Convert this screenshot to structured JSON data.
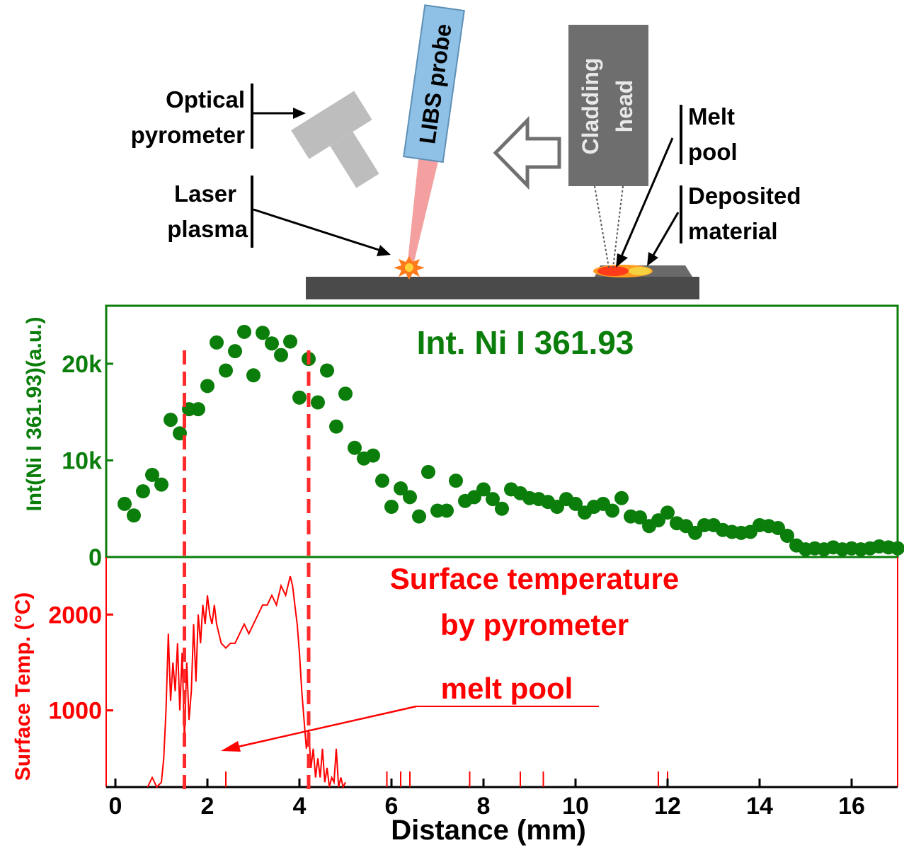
{
  "colors": {
    "ni_series": "#0a7d0a",
    "temp_series": "#ff0000",
    "dashed_lines": "#ff2a2a",
    "probe_fill": "#8fc0e6",
    "head_fill": "#6e6e6e",
    "pyrometer_fill": "#bdbdbd",
    "substrate_fill": "#4a4a4a",
    "axis_text": "#000000"
  },
  "schematic": {
    "optical_pyrometer_label": [
      "Optical",
      "pyrometer"
    ],
    "laser_plasma_label": [
      "Laser",
      "plasma"
    ],
    "libs_probe_label": "LIBS probe",
    "cladding_head_label": [
      "Cladding",
      "head"
    ],
    "melt_pool_label": [
      "Melt",
      "pool"
    ],
    "deposited_material_label": [
      "Deposited",
      "material"
    ],
    "icons": [
      "pyrometer-icon",
      "libs-probe-icon",
      "cladding-head-icon",
      "travel-direction-arrow-icon",
      "laser-plasma-spark-icon",
      "substrate-icon"
    ]
  },
  "chart_data": [
    {
      "type": "scatter",
      "title": "Int. Ni I 361.93",
      "ylabel": "Int(Ni I 361.93)(a.u.)",
      "xlabel": "Distance (mm)",
      "xlim": [
        -0.2,
        17
      ],
      "ylim": [
        0,
        26000
      ],
      "yticks": [
        0,
        10000,
        20000
      ],
      "ytick_labels": [
        "0",
        "10k",
        "20k"
      ],
      "marker_lines_x": [
        1.5,
        4.2
      ],
      "x": [
        0.2,
        0.4,
        0.6,
        0.8,
        1.0,
        1.2,
        1.4,
        1.6,
        1.8,
        2.0,
        2.2,
        2.4,
        2.6,
        2.8,
        3.0,
        3.2,
        3.4,
        3.6,
        3.8,
        4.0,
        4.2,
        4.4,
        4.6,
        4.8,
        5.0,
        5.2,
        5.4,
        5.6,
        5.8,
        6.0,
        6.2,
        6.4,
        6.6,
        6.8,
        7.0,
        7.2,
        7.4,
        7.6,
        7.8,
        8.0,
        8.2,
        8.4,
        8.6,
        8.8,
        9.0,
        9.2,
        9.4,
        9.6,
        9.8,
        10.0,
        10.2,
        10.4,
        10.6,
        10.8,
        11.0,
        11.2,
        11.4,
        11.6,
        11.8,
        12.0,
        12.2,
        12.4,
        12.6,
        12.8,
        13.0,
        13.2,
        13.4,
        13.6,
        13.8,
        14.0,
        14.2,
        14.4,
        14.6,
        14.8,
        15.0,
        15.2,
        15.4,
        15.6,
        15.8,
        16.0,
        16.2,
        16.4,
        16.6,
        16.8,
        17.0
      ],
      "values": [
        5500,
        4300,
        6800,
        8500,
        7500,
        14200,
        12800,
        15300,
        15300,
        17700,
        22200,
        19300,
        21300,
        23300,
        18800,
        23200,
        22100,
        20900,
        22300,
        16500,
        20500,
        16000,
        19300,
        13500,
        16900,
        11300,
        10200,
        10500,
        7900,
        5200,
        7100,
        6200,
        4200,
        8800,
        4800,
        4800,
        7900,
        5800,
        6200,
        7000,
        6000,
        5000,
        7000,
        6600,
        6100,
        6000,
        5700,
        5200,
        6000,
        5500,
        4600,
        5200,
        5500,
        4800,
        6100,
        4200,
        4100,
        3200,
        3800,
        4600,
        3500,
        3200,
        2500,
        3300,
        3300,
        2800,
        2600,
        2500,
        2600,
        3300,
        3200,
        3000,
        2200,
        1200,
        800,
        900,
        800,
        1000,
        800,
        900,
        800,
        900,
        1100,
        1000,
        900
      ]
    },
    {
      "type": "line",
      "title": "Surface temperature by pyrometer",
      "title_lines": [
        "Surface temperature",
        "by pyrometer"
      ],
      "annotation": "melt pool",
      "ylabel": "Surface Temp. (°C)",
      "xlabel": "Distance (mm)",
      "xlim": [
        -0.2,
        17
      ],
      "ylim": [
        200,
        2600
      ],
      "yticks": [
        1000,
        2000
      ],
      "ytick_labels": [
        "1000",
        "2000"
      ],
      "xticks": [
        0,
        2,
        4,
        6,
        8,
        10,
        12,
        14,
        16
      ],
      "xtick_labels": [
        "0",
        "2",
        "4",
        "6",
        "8",
        "10",
        "12",
        "14",
        "16"
      ],
      "x": [
        0.7,
        0.8,
        0.9,
        1.0,
        1.05,
        1.1,
        1.15,
        1.2,
        1.25,
        1.3,
        1.35,
        1.4,
        1.45,
        1.5,
        1.55,
        1.6,
        1.65,
        1.7,
        1.75,
        1.8,
        1.85,
        1.9,
        1.95,
        2.0,
        2.05,
        2.1,
        2.15,
        2.2,
        2.3,
        2.4,
        2.5,
        2.6,
        2.7,
        2.8,
        2.9,
        3.0,
        3.1,
        3.2,
        3.3,
        3.4,
        3.5,
        3.6,
        3.7,
        3.8,
        3.85,
        3.9,
        3.95,
        4.0,
        4.05,
        4.1,
        4.15,
        4.2,
        4.25,
        4.3,
        4.35,
        4.4,
        4.45,
        4.5,
        4.55,
        4.6,
        4.65,
        4.7,
        4.75,
        4.8,
        4.85,
        4.9,
        4.95,
        5.0
      ],
      "values": [
        200,
        300,
        200,
        250,
        500,
        1000,
        1800,
        1100,
        1500,
        1200,
        1700,
        1000,
        1600,
        700,
        1500,
        900,
        1200,
        1900,
        1300,
        2000,
        1700,
        2100,
        1900,
        2200,
        2000,
        1900,
        2100,
        1900,
        1700,
        1650,
        1700,
        1700,
        1800,
        1900,
        1800,
        1900,
        2000,
        2100,
        2100,
        2200,
        2100,
        2300,
        2200,
        2400,
        2300,
        2100,
        1900,
        1600,
        1200,
        900,
        600,
        800,
        400,
        600,
        300,
        500,
        300,
        600,
        250,
        400,
        200,
        300,
        250,
        600,
        200,
        300,
        200,
        250
      ],
      "spikes_x": [
        2.4,
        5.9,
        6.2,
        6.4,
        7.7,
        8.8,
        9.3,
        11.8,
        12.0
      ]
    }
  ]
}
